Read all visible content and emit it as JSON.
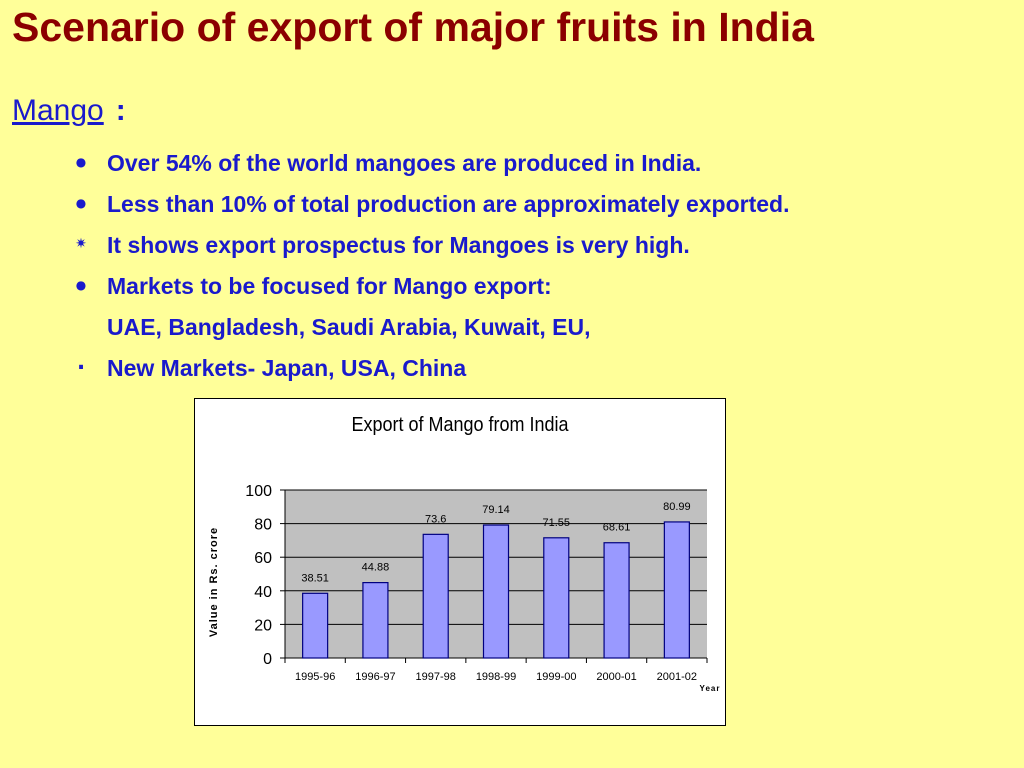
{
  "slide": {
    "title": "Scenario of export of major fruits in India",
    "heading_link": "Mango",
    "heading_colon": ":",
    "bullets": [
      {
        "marker": "dot",
        "text": "Over 54% of the world mangoes are produced in India."
      },
      {
        "marker": "dot",
        "text": "Less than 10% of total production are approximately exported."
      },
      {
        "marker": "star",
        "text": "It shows export prospectus for Mangoes is very high."
      },
      {
        "marker": "dot",
        "text": "Markets to be focused for Mango export:"
      },
      {
        "marker": "none",
        "text": "UAE, Bangladesh, Saudi Arabia, Kuwait, EU,"
      },
      {
        "marker": "period",
        "text": "New Markets- Japan, USA, China"
      }
    ]
  },
  "chart_data": {
    "type": "bar",
    "title": "Export of Mango from India",
    "xlabel": "Year",
    "ylabel": "Value in Rs. crore",
    "categories": [
      "1995-96",
      "1996-97",
      "1997-98",
      "1998-99",
      "1999-00",
      "2000-01",
      "2001-02"
    ],
    "values": [
      38.51,
      44.88,
      73.6,
      79.14,
      71.55,
      68.61,
      80.99
    ],
    "data_labels": [
      "38.51",
      "44.88",
      "73.6",
      "79.14",
      "71.55",
      "68.61",
      "80.99"
    ],
    "yticks": [
      0,
      20,
      40,
      60,
      80,
      100
    ],
    "ylim": [
      0,
      100
    ],
    "grid": true,
    "legend": "none",
    "colors": {
      "bar_fill": "#9999ff",
      "bar_stroke": "#000080",
      "plot_bg": "#c0c0c0"
    }
  }
}
